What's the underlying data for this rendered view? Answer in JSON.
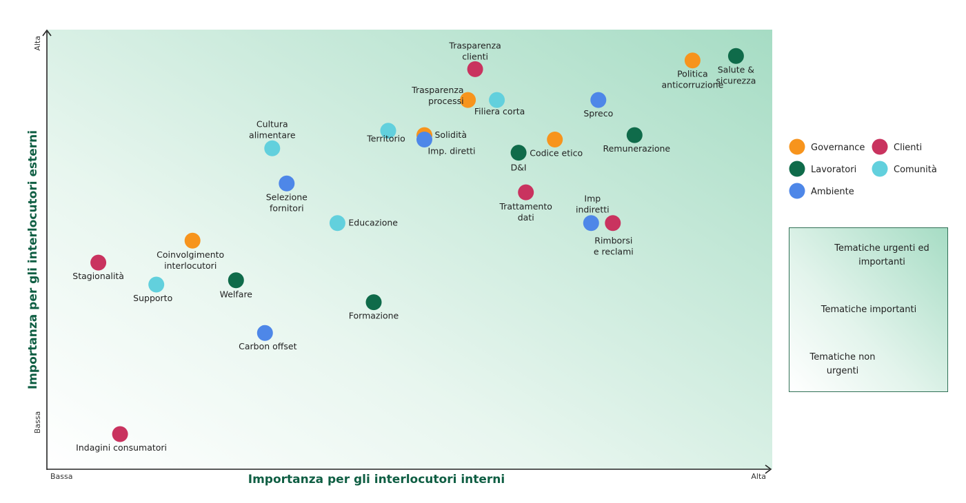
{
  "chart_data": {
    "type": "scatter",
    "title": "",
    "xlabel": "Importanza per gli interlocutori interni",
    "ylabel": "Importanza per gli interlocutori esterni",
    "xlim": [
      0,
      100
    ],
    "ylim": [
      0,
      100
    ],
    "x_tick_labels": {
      "low": "Bassa",
      "high": "Alta"
    },
    "y_tick_labels": {
      "low": "Bassa",
      "high": "Alta"
    },
    "grid": false,
    "legend_position": "right",
    "categories": [
      {
        "key": "governance",
        "label": "Governance",
        "color": "#F7941D"
      },
      {
        "key": "clienti",
        "label": "Clienti",
        "color": "#C9335F"
      },
      {
        "key": "lavoratori",
        "label": "Lavoratori",
        "color": "#0F6B4A"
      },
      {
        "key": "comunita",
        "label": "Comunità",
        "color": "#62D0DD"
      },
      {
        "key": "ambiente",
        "label": "Ambiente",
        "color": "#4E87E8"
      }
    ],
    "gradient_legend": [
      "Tematiche urgenti ed importanti",
      "Tematiche importanti",
      "Tematiche non urgenti"
    ],
    "points": [
      {
        "label": "Trasparenza clienti",
        "category": "clienti",
        "x": 59,
        "y": 91
      },
      {
        "label": "Politica anticorruzione",
        "category": "governance",
        "x": 89,
        "y": 93
      },
      {
        "label": "Salute & sicurezza",
        "category": "lavoratori",
        "x": 95,
        "y": 94
      },
      {
        "label": "Trasparenza processi",
        "category": "governance",
        "x": 58,
        "y": 84
      },
      {
        "label": "Filiera corta",
        "category": "comunita",
        "x": 62,
        "y": 84
      },
      {
        "label": "Spreco",
        "category": "ambiente",
        "x": 76,
        "y": 84
      },
      {
        "label": "Cultura alimentare",
        "category": "comunita",
        "x": 31,
        "y": 73
      },
      {
        "label": "Territorio",
        "category": "comunita",
        "x": 47,
        "y": 77
      },
      {
        "label": "Solidità",
        "category": "governance",
        "x": 52,
        "y": 76
      },
      {
        "label": "Imp. diretti",
        "category": "ambiente",
        "x": 52,
        "y": 75
      },
      {
        "label": "Codice etico",
        "category": "governance",
        "x": 70,
        "y": 75
      },
      {
        "label": "Remunerazione",
        "category": "lavoratori",
        "x": 81,
        "y": 76
      },
      {
        "label": "D&I",
        "category": "lavoratori",
        "x": 65,
        "y": 72
      },
      {
        "label": "Selezione fornitori",
        "category": "ambiente",
        "x": 33,
        "y": 65
      },
      {
        "label": "Trattamento dati",
        "category": "clienti",
        "x": 66,
        "y": 63
      },
      {
        "label": "Imp indiretti",
        "category": "ambiente",
        "x": 75,
        "y": 56
      },
      {
        "label": "Rimborsi e reclami",
        "category": "clienti",
        "x": 78,
        "y": 56
      },
      {
        "label": "Educazione",
        "category": "comunita",
        "x": 40,
        "y": 56
      },
      {
        "label": "Coinvolgimento interlocutori",
        "category": "governance",
        "x": 20,
        "y": 52
      },
      {
        "label": "Stagionalità",
        "category": "clienti",
        "x": 7,
        "y": 47
      },
      {
        "label": "Supporto",
        "category": "comunita",
        "x": 15,
        "y": 42
      },
      {
        "label": "Welfare",
        "category": "lavoratori",
        "x": 26,
        "y": 43
      },
      {
        "label": "Formazione",
        "category": "lavoratori",
        "x": 45,
        "y": 38
      },
      {
        "label": "Carbon offset",
        "category": "ambiente",
        "x": 30,
        "y": 31
      },
      {
        "label": "Indagini consumatori",
        "category": "clienti",
        "x": 10,
        "y": 8
      }
    ]
  }
}
